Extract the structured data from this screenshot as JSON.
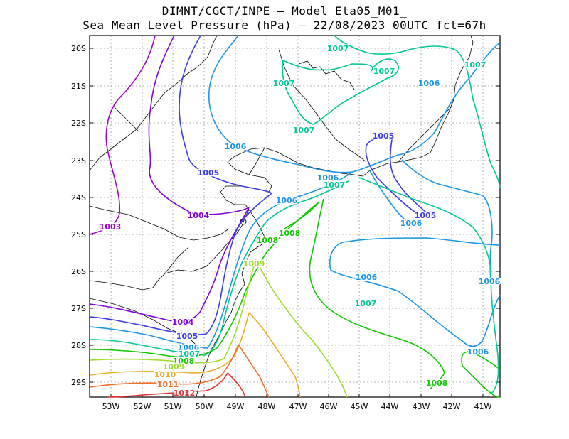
{
  "title_line1": "DIMNT/CGCT/INPE –  Model Eta05_M01_",
  "title_line2": "Sea Mean Level Pressure (hPa) – 22/08/2023 00UTC fct=67h",
  "lat_ticks": [
    "20S",
    "21S",
    "22S",
    "23S",
    "24S",
    "25S",
    "26S",
    "27S",
    "28S",
    "29S"
  ],
  "lon_ticks": [
    "53W",
    "52W",
    "51W",
    "50W",
    "49W",
    "48W",
    "47W",
    "46W",
    "45W",
    "44W",
    "43W",
    "42W",
    "41W"
  ],
  "colors": {
    "c1003": "#a000c8",
    "c1004": "#8200dc",
    "c1005": "#3c3ce6",
    "c1006": "#1e96e6",
    "c1007": "#00c896",
    "c1008": "#10c800",
    "c1009": "#a0dc32",
    "c1010": "#e6af2d",
    "c1011": "#f06e28",
    "c1012": "#e63232"
  },
  "contour_labels": [
    {
      "text": "1007",
      "color": "c1007"
    },
    {
      "text": "1007",
      "color": "c1007"
    },
    {
      "text": "1007",
      "color": "c1007"
    },
    {
      "text": "1007",
      "color": "c1007"
    },
    {
      "text": "1007",
      "color": "c1007"
    },
    {
      "text": "1006",
      "color": "c1006"
    },
    {
      "text": "1005",
      "color": "c1005"
    },
    {
      "text": "1006",
      "color": "c1006"
    },
    {
      "text": "1005",
      "color": "c1005"
    },
    {
      "text": "1006",
      "color": "c1006"
    },
    {
      "text": "1007",
      "color": "c1007"
    },
    {
      "text": "1006",
      "color": "c1006"
    },
    {
      "text": "1004",
      "color": "c1004"
    },
    {
      "text": "1005",
      "color": "c1005"
    },
    {
      "text": "1006",
      "color": "c1006"
    },
    {
      "text": "1003",
      "color": "c1003"
    },
    {
      "text": "1008",
      "color": "c1008"
    },
    {
      "text": "1008",
      "color": "c1008"
    },
    {
      "text": "1009",
      "color": "c1009"
    },
    {
      "text": "1006",
      "color": "c1006"
    },
    {
      "text": "1006",
      "color": "c1006"
    },
    {
      "text": "1007",
      "color": "c1007"
    },
    {
      "text": "1004",
      "color": "c1004"
    },
    {
      "text": "1005",
      "color": "c1005"
    },
    {
      "text": "1006",
      "color": "c1006"
    },
    {
      "text": "1007",
      "color": "c1007"
    },
    {
      "text": "1008",
      "color": "c1008"
    },
    {
      "text": "1009",
      "color": "c1009"
    },
    {
      "text": "1006",
      "color": "c1006"
    },
    {
      "text": "1010",
      "color": "c1010"
    },
    {
      "text": "1011",
      "color": "c1011"
    },
    {
      "text": "1012",
      "color": "c1012"
    },
    {
      "text": "1008",
      "color": "c1008"
    }
  ]
}
